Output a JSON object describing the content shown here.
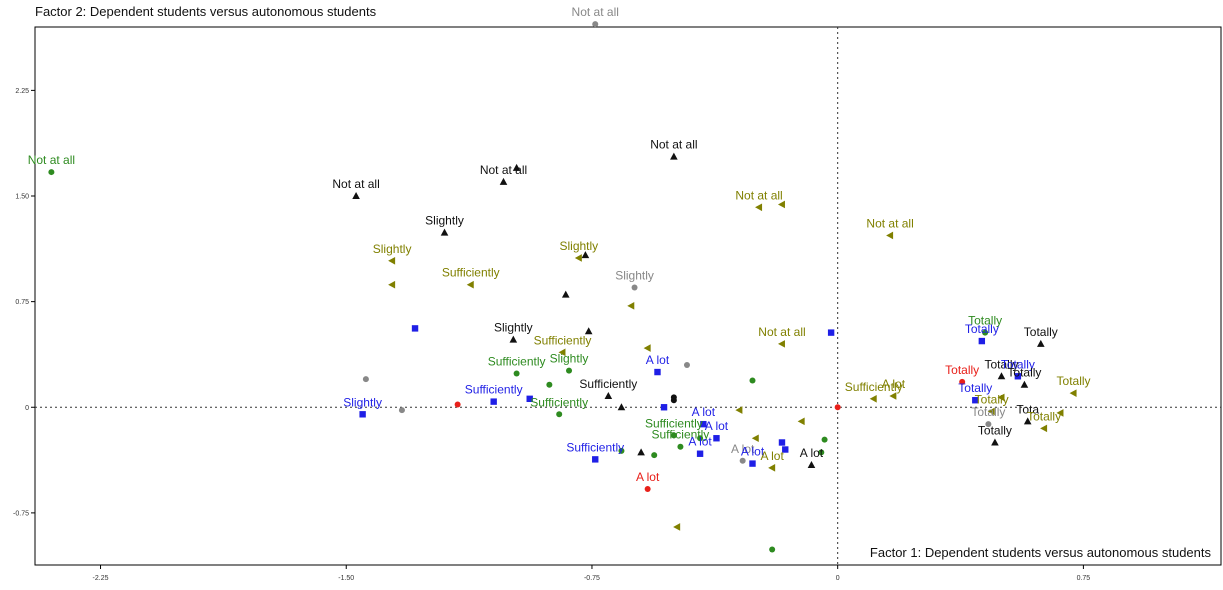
{
  "title": "Factor 2: Dependent students versus autonomous students",
  "chart_data": {
    "type": "scatter",
    "title": "Factor 2: Dependent students versus autonomous students",
    "xlabel": "Factor 1: Dependent students versus autonomous students",
    "ylabel": "",
    "xlim": [
      -2.45,
      1.17
    ],
    "ylim": [
      -1.12,
      2.7
    ],
    "grid": false,
    "reference_lines": {
      "x": 0,
      "y": 0
    },
    "x_ticks": [
      {
        "value": -2.25,
        "label": "-2.25"
      },
      {
        "value": -1.5,
        "label": "-1.50"
      },
      {
        "value": -0.75,
        "label": "-0.75"
      },
      {
        "value": 0,
        "label": "0"
      },
      {
        "value": 0.75,
        "label": "0.75"
      }
    ],
    "y_ticks": [
      {
        "value": 2.25,
        "label": "2.25"
      },
      {
        "value": 1.5,
        "label": "1.50"
      },
      {
        "value": 0.75,
        "label": "0.75"
      },
      {
        "value": 0,
        "label": "0"
      },
      {
        "value": -0.75,
        "label": "-0.75"
      }
    ],
    "colors": {
      "black": "#111111",
      "blue": "#1f1fe6",
      "green": "#2e8b20",
      "olive": "#808000",
      "gray": "#888888",
      "red": "#e8201a"
    },
    "points": [
      {
        "x": -0.74,
        "y": 2.72,
        "label": "Not at all",
        "color": "gray",
        "marker": "circle"
      },
      {
        "x": -2.4,
        "y": 1.67,
        "label": "Not at all",
        "color": "green",
        "marker": "circle"
      },
      {
        "x": -1.47,
        "y": 1.5,
        "label": "Not at all",
        "color": "black",
        "marker": "triangle"
      },
      {
        "x": -1.02,
        "y": 1.6,
        "label": "Not at all",
        "color": "black",
        "marker": "triangle"
      },
      {
        "x": -0.98,
        "y": 1.7,
        "label": "",
        "color": "black",
        "marker": "triangle"
      },
      {
        "x": -0.5,
        "y": 1.78,
        "label": "Not at all",
        "color": "black",
        "marker": "triangle"
      },
      {
        "x": -0.24,
        "y": 1.42,
        "label": "Not at all",
        "color": "olive",
        "marker": "tri-left"
      },
      {
        "x": -0.17,
        "y": 1.44,
        "label": "",
        "color": "olive",
        "marker": "tri-left"
      },
      {
        "x": 0.16,
        "y": 1.22,
        "label": "Not at all",
        "color": "olive",
        "marker": "tri-left"
      },
      {
        "x": -1.2,
        "y": 1.24,
        "label": "Slightly",
        "color": "black",
        "marker": "triangle"
      },
      {
        "x": -1.36,
        "y": 1.04,
        "label": "Slightly",
        "color": "olive",
        "marker": "tri-left"
      },
      {
        "x": -1.36,
        "y": 0.87,
        "label": "",
        "color": "olive",
        "marker": "tri-left"
      },
      {
        "x": -1.12,
        "y": 0.87,
        "label": "Sufficiently",
        "color": "olive",
        "marker": "tri-left"
      },
      {
        "x": -0.79,
        "y": 1.06,
        "label": "Slightly",
        "color": "olive",
        "marker": "tri-left"
      },
      {
        "x": -0.77,
        "y": 1.08,
        "label": "",
        "color": "black",
        "marker": "triangle"
      },
      {
        "x": -0.62,
        "y": 0.85,
        "label": "Slightly",
        "color": "gray",
        "marker": "circle"
      },
      {
        "x": -0.63,
        "y": 0.72,
        "label": "",
        "color": "olive",
        "marker": "tri-left"
      },
      {
        "x": -0.83,
        "y": 0.8,
        "label": "",
        "color": "black",
        "marker": "triangle"
      },
      {
        "x": -1.29,
        "y": 0.56,
        "label": "",
        "color": "blue",
        "marker": "square"
      },
      {
        "x": -0.99,
        "y": 0.48,
        "label": "Slightly",
        "color": "black",
        "marker": "triangle"
      },
      {
        "x": -0.76,
        "y": 0.54,
        "label": "",
        "color": "black",
        "marker": "triangle"
      },
      {
        "x": -0.84,
        "y": 0.39,
        "label": "Sufficiently",
        "color": "olive",
        "marker": "tri-left"
      },
      {
        "x": -0.17,
        "y": 0.45,
        "label": "Not at all",
        "color": "olive",
        "marker": "tri-left"
      },
      {
        "x": -0.58,
        "y": 0.42,
        "label": "",
        "color": "olive",
        "marker": "tri-left"
      },
      {
        "x": -0.02,
        "y": 0.53,
        "label": "",
        "color": "blue",
        "marker": "square"
      },
      {
        "x": -1.44,
        "y": 0.2,
        "label": "",
        "color": "gray",
        "marker": "circle"
      },
      {
        "x": -0.98,
        "y": 0.24,
        "label": "Sufficiently",
        "color": "green",
        "marker": "circle"
      },
      {
        "x": -0.82,
        "y": 0.26,
        "label": "Slightly",
        "color": "green",
        "marker": "circle"
      },
      {
        "x": -0.88,
        "y": 0.16,
        "label": "",
        "color": "green",
        "marker": "circle"
      },
      {
        "x": -0.7,
        "y": 0.08,
        "label": "Sufficiently",
        "color": "black",
        "marker": "triangle"
      },
      {
        "x": -1.05,
        "y": 0.04,
        "label": "Sufficiently",
        "color": "blue",
        "marker": "square"
      },
      {
        "x": -0.94,
        "y": 0.06,
        "label": "",
        "color": "blue",
        "marker": "square"
      },
      {
        "x": -0.55,
        "y": 0.25,
        "label": "A lot",
        "color": "blue",
        "marker": "square"
      },
      {
        "x": -0.46,
        "y": 0.3,
        "label": "",
        "color": "gray",
        "marker": "circle"
      },
      {
        "x": -0.5,
        "y": 0.05,
        "label": "",
        "color": "black",
        "marker": "circle"
      },
      {
        "x": -0.5,
        "y": 0.07,
        "label": "",
        "color": "black",
        "marker": "circle"
      },
      {
        "x": -0.53,
        "y": 0.0,
        "label": "",
        "color": "blue",
        "marker": "square"
      },
      {
        "x": -0.66,
        "y": 0.0,
        "label": "",
        "color": "black",
        "marker": "triangle"
      },
      {
        "x": -0.26,
        "y": 0.19,
        "label": "",
        "color": "green",
        "marker": "circle"
      },
      {
        "x": 0.11,
        "y": 0.06,
        "label": "Sufficiently",
        "color": "olive",
        "marker": "tri-left"
      },
      {
        "x": 0.17,
        "y": 0.08,
        "label": "A lot",
        "color": "olive",
        "marker": "tri-left"
      },
      {
        "x": -1.45,
        "y": -0.05,
        "label": "Slightly",
        "color": "blue",
        "marker": "square"
      },
      {
        "x": -1.33,
        "y": -0.02,
        "label": "",
        "color": "gray",
        "marker": "circle"
      },
      {
        "x": -1.16,
        "y": 0.02,
        "label": "",
        "color": "red",
        "marker": "circle"
      },
      {
        "x": -0.85,
        "y": -0.05,
        "label": "Sufficiently",
        "color": "green",
        "marker": "circle"
      },
      {
        "x": -0.41,
        "y": -0.12,
        "label": "A lot",
        "color": "blue",
        "marker": "square"
      },
      {
        "x": -0.37,
        "y": -0.22,
        "label": "A lot",
        "color": "blue",
        "marker": "square"
      },
      {
        "x": -0.5,
        "y": -0.2,
        "label": "Sufficiently",
        "color": "green",
        "marker": "circle"
      },
      {
        "x": -0.42,
        "y": -0.22,
        "label": "",
        "color": "green",
        "marker": "circle"
      },
      {
        "x": -0.3,
        "y": -0.02,
        "label": "",
        "color": "olive",
        "marker": "tri-left"
      },
      {
        "x": -0.25,
        "y": -0.22,
        "label": "",
        "color": "olive",
        "marker": "tri-left"
      },
      {
        "x": -0.17,
        "y": -0.25,
        "label": "",
        "color": "blue",
        "marker": "square"
      },
      {
        "x": -0.16,
        "y": -0.3,
        "label": "",
        "color": "blue",
        "marker": "square"
      },
      {
        "x": -0.11,
        "y": -0.1,
        "label": "",
        "color": "olive",
        "marker": "tri-left"
      },
      {
        "x": -0.05,
        "y": -0.32,
        "label": "",
        "color": "green",
        "marker": "circle"
      },
      {
        "x": -0.04,
        "y": -0.23,
        "label": "",
        "color": "green",
        "marker": "circle"
      },
      {
        "x": -0.08,
        "y": -0.41,
        "label": "A lot",
        "color": "black",
        "marker": "triangle"
      },
      {
        "x": -0.48,
        "y": -0.28,
        "label": "Sufficiently",
        "color": "green",
        "marker": "circle"
      },
      {
        "x": -0.42,
        "y": -0.33,
        "label": "A lot",
        "color": "blue",
        "marker": "square"
      },
      {
        "x": -0.29,
        "y": -0.38,
        "label": "A lot",
        "color": "gray",
        "marker": "circle"
      },
      {
        "x": -0.26,
        "y": -0.4,
        "label": "A lot",
        "color": "blue",
        "marker": "square"
      },
      {
        "x": -0.2,
        "y": -0.43,
        "label": "A lot",
        "color": "olive",
        "marker": "tri-left"
      },
      {
        "x": -0.56,
        "y": -0.34,
        "label": "",
        "color": "green",
        "marker": "circle"
      },
      {
        "x": -0.6,
        "y": -0.32,
        "label": "",
        "color": "black",
        "marker": "triangle"
      },
      {
        "x": -0.66,
        "y": -0.31,
        "label": "",
        "color": "green",
        "marker": "circle"
      },
      {
        "x": -0.74,
        "y": -0.37,
        "label": "Sufficiently",
        "color": "blue",
        "marker": "square"
      },
      {
        "x": -0.58,
        "y": -0.58,
        "label": "A lot",
        "color": "red",
        "marker": "circle"
      },
      {
        "x": -0.49,
        "y": -0.85,
        "label": "",
        "color": "olive",
        "marker": "tri-left"
      },
      {
        "x": -0.2,
        "y": -1.01,
        "label": "",
        "color": "green",
        "marker": "circle"
      },
      {
        "x": 0.0,
        "y": 0.0,
        "label": "",
        "color": "red",
        "marker": "circle"
      },
      {
        "x": 0.38,
        "y": 0.18,
        "label": "Totally",
        "color": "red",
        "marker": "circle"
      },
      {
        "x": 0.42,
        "y": 0.05,
        "label": "Totally",
        "color": "blue",
        "marker": "square"
      },
      {
        "x": 0.45,
        "y": 0.53,
        "label": "Totally",
        "color": "green",
        "marker": "circle"
      },
      {
        "x": 0.44,
        "y": 0.47,
        "label": "Totally",
        "color": "blue",
        "marker": "square"
      },
      {
        "x": 0.5,
        "y": 0.22,
        "label": "Totally",
        "color": "black",
        "marker": "triangle"
      },
      {
        "x": 0.55,
        "y": 0.22,
        "label": "Totally",
        "color": "blue",
        "marker": "square"
      },
      {
        "x": 0.62,
        "y": 0.45,
        "label": "Totally",
        "color": "black",
        "marker": "triangle"
      },
      {
        "x": 0.57,
        "y": 0.16,
        "label": "Totally",
        "color": "black",
        "marker": "triangle"
      },
      {
        "x": 0.72,
        "y": 0.1,
        "label": "Totally",
        "color": "olive",
        "marker": "tri-left"
      },
      {
        "x": 0.5,
        "y": 0.07,
        "label": "",
        "color": "olive",
        "marker": "tri-left"
      },
      {
        "x": 0.46,
        "y": -0.12,
        "label": "Totally",
        "color": "gray",
        "marker": "circle"
      },
      {
        "x": 0.47,
        "y": -0.03,
        "label": "Totally",
        "color": "olive",
        "marker": "tri-left"
      },
      {
        "x": 0.58,
        "y": -0.1,
        "label": "Tota",
        "color": "black",
        "marker": "triangle"
      },
      {
        "x": 0.63,
        "y": -0.15,
        "label": "Totally",
        "color": "olive",
        "marker": "tri-left"
      },
      {
        "x": 0.48,
        "y": -0.25,
        "label": "Totally",
        "color": "black",
        "marker": "triangle"
      },
      {
        "x": 0.68,
        "y": -0.04,
        "label": "",
        "color": "olive",
        "marker": "tri-left"
      }
    ]
  }
}
